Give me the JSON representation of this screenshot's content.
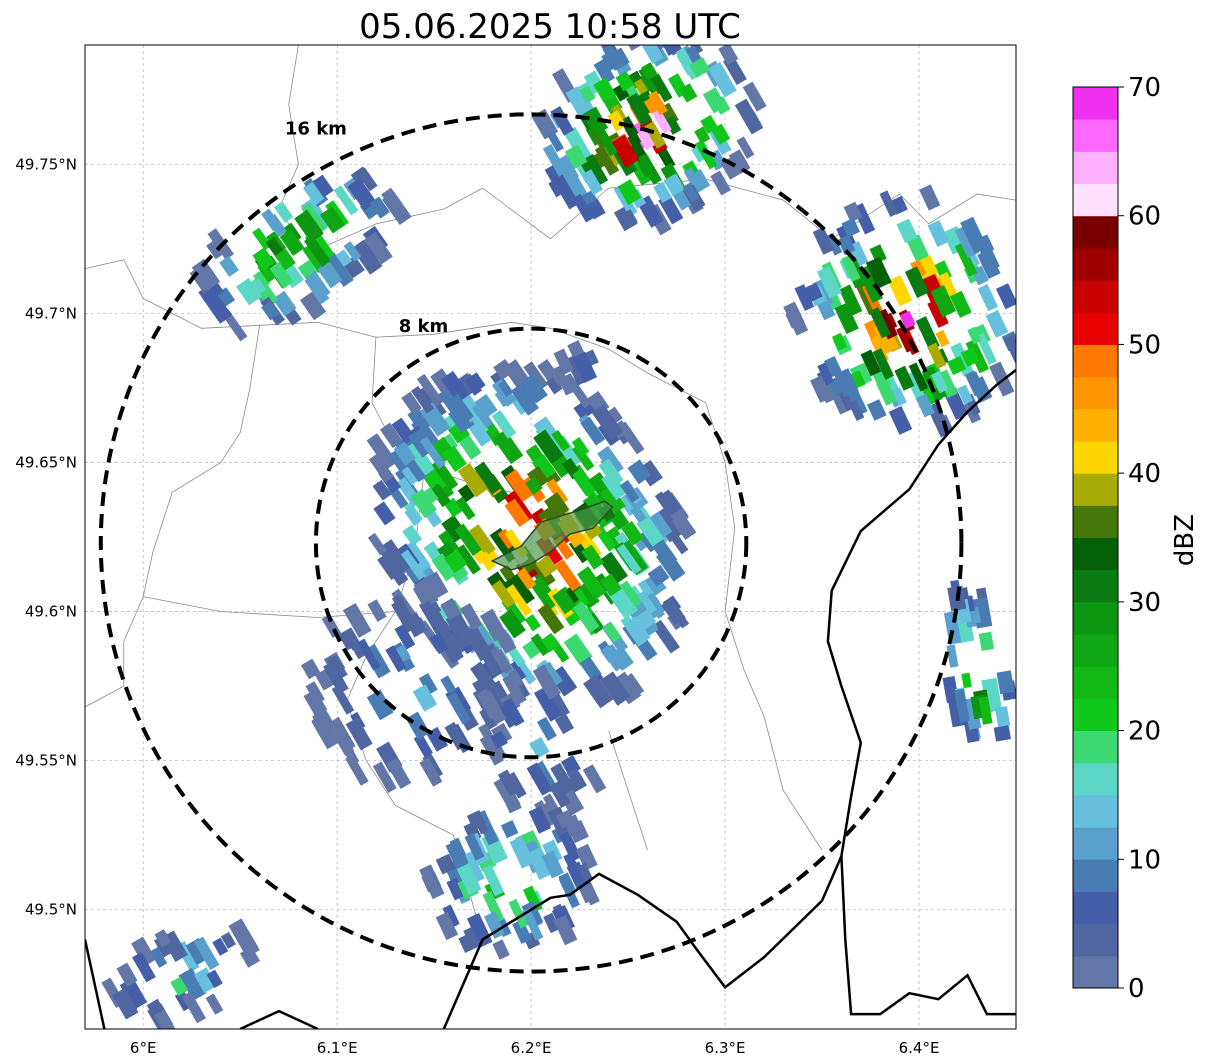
{
  "title": "05.06.2025 10:58 UTC",
  "map": {
    "lon_range": [
      5.97,
      6.45
    ],
    "lat_range": [
      49.46,
      49.79
    ],
    "x_ticks": [
      {
        "value": 6.0,
        "label": "6°E"
      },
      {
        "value": 6.1,
        "label": "6.1°E"
      },
      {
        "value": 6.2,
        "label": "6.2°E"
      },
      {
        "value": 6.3,
        "label": "6.3°E"
      },
      {
        "value": 6.4,
        "label": "6.4°E"
      }
    ],
    "y_ticks": [
      {
        "value": 49.75,
        "label": "49.75°N"
      },
      {
        "value": 49.7,
        "label": "49.7°N"
      },
      {
        "value": 49.65,
        "label": "49.65°N"
      },
      {
        "value": 49.6,
        "label": "49.6°N"
      },
      {
        "value": 49.55,
        "label": "49.55°N"
      },
      {
        "value": 49.5,
        "label": "49.5°N"
      }
    ],
    "gridlines": true,
    "center": {
      "lon": 6.2,
      "lat": 49.623
    },
    "rings": [
      {
        "radius_km": 8,
        "label": "8 km"
      },
      {
        "radius_km": 16,
        "label": "16 km"
      }
    ],
    "boundary_thick": [
      [
        [
          6.155,
          49.46
        ],
        [
          6.175,
          49.49
        ],
        [
          6.21,
          49.504
        ],
        [
          6.22,
          49.505
        ],
        [
          6.235,
          49.512
        ],
        [
          6.255,
          49.505
        ],
        [
          6.275,
          49.496
        ],
        [
          6.285,
          49.487
        ],
        [
          6.3,
          49.474
        ],
        [
          6.32,
          49.484
        ],
        [
          6.35,
          49.503
        ],
        [
          6.36,
          49.518
        ],
        [
          6.365,
          49.538
        ],
        [
          6.37,
          49.556
        ],
        [
          6.36,
          49.575
        ],
        [
          6.353,
          49.59
        ],
        [
          6.355,
          49.607
        ],
        [
          6.37,
          49.627
        ],
        [
          6.395,
          49.641
        ],
        [
          6.41,
          49.656
        ],
        [
          6.425,
          49.667
        ],
        [
          6.44,
          49.676
        ],
        [
          6.45,
          49.681
        ]
      ],
      [
        [
          5.97,
          49.49
        ],
        [
          5.98,
          49.46
        ]
      ],
      [
        [
          6.05,
          49.46
        ],
        [
          6.07,
          49.466
        ],
        [
          6.09,
          49.46
        ]
      ],
      [
        [
          6.36,
          49.518
        ],
        [
          6.362,
          49.49
        ],
        [
          6.365,
          49.465
        ],
        [
          6.38,
          49.465
        ],
        [
          6.395,
          49.472
        ],
        [
          6.41,
          49.47
        ],
        [
          6.425,
          49.478
        ],
        [
          6.435,
          49.465
        ],
        [
          6.45,
          49.465
        ]
      ]
    ],
    "boundary_thin": [
      [
        [
          6.08,
          49.79
        ],
        [
          6.075,
          49.77
        ],
        [
          6.08,
          49.75
        ],
        [
          6.07,
          49.735
        ],
        [
          6.085,
          49.72
        ],
        [
          6.12,
          49.73
        ],
        [
          6.155,
          49.735
        ],
        [
          6.175,
          49.742
        ],
        [
          6.21,
          49.725
        ],
        [
          6.24,
          49.742
        ],
        [
          6.29,
          49.745
        ],
        [
          6.33,
          49.738
        ],
        [
          6.355,
          49.725
        ],
        [
          6.39,
          49.74
        ],
        [
          6.405,
          49.73
        ],
        [
          6.43,
          49.74
        ],
        [
          6.45,
          49.738
        ]
      ],
      [
        [
          5.97,
          49.715
        ],
        [
          5.99,
          49.718
        ],
        [
          6.0,
          49.705
        ],
        [
          6.015,
          49.7
        ],
        [
          6.03,
          49.695
        ],
        [
          6.06,
          49.696
        ],
        [
          6.09,
          49.697
        ],
        [
          6.12,
          49.692
        ],
        [
          6.15,
          49.693
        ],
        [
          6.19,
          49.697
        ],
        [
          6.21,
          49.695
        ],
        [
          6.24,
          49.688
        ],
        [
          6.26,
          49.68
        ],
        [
          6.29,
          49.67
        ],
        [
          6.3,
          49.65
        ],
        [
          6.305,
          49.628
        ]
      ],
      [
        [
          6.12,
          49.692
        ],
        [
          6.118,
          49.67
        ],
        [
          6.13,
          49.655
        ],
        [
          6.145,
          49.648
        ],
        [
          6.16,
          49.645
        ],
        [
          6.175,
          49.642
        ],
        [
          6.19,
          49.64
        ]
      ],
      [
        [
          6.06,
          49.696
        ],
        [
          6.055,
          49.675
        ],
        [
          6.05,
          49.66
        ],
        [
          6.04,
          49.65
        ],
        [
          6.015,
          49.64
        ],
        [
          6.005,
          49.62
        ],
        [
          6.0,
          49.605
        ],
        [
          5.99,
          49.59
        ],
        [
          5.99,
          49.575
        ],
        [
          5.97,
          49.568
        ]
      ],
      [
        [
          6.145,
          49.648
        ],
        [
          6.14,
          49.62
        ],
        [
          6.13,
          49.6
        ],
        [
          6.115,
          49.585
        ],
        [
          6.105,
          49.57
        ],
        [
          6.115,
          49.55
        ],
        [
          6.13,
          49.535
        ],
        [
          6.16,
          49.525
        ],
        [
          6.175,
          49.49
        ]
      ],
      [
        [
          6.0,
          49.605
        ],
        [
          6.04,
          49.6
        ],
        [
          6.09,
          49.598
        ],
        [
          6.13,
          49.6
        ]
      ],
      [
        [
          6.305,
          49.628
        ],
        [
          6.3,
          49.6
        ],
        [
          6.31,
          49.58
        ],
        [
          6.32,
          49.565
        ],
        [
          6.33,
          49.54
        ],
        [
          6.35,
          49.52
        ]
      ],
      [
        [
          6.24,
          49.56
        ],
        [
          6.25,
          49.54
        ],
        [
          6.26,
          49.52
        ]
      ]
    ]
  },
  "colorbar": {
    "label": "dBZ",
    "vmin": 0,
    "vmax": 70,
    "ticks": [
      0,
      10,
      20,
      30,
      40,
      50,
      60,
      70
    ],
    "colors": [
      "#6276a8",
      "#5066a0",
      "#445ea8",
      "#4a7cb4",
      "#5aa0cc",
      "#66c0de",
      "#5cd6c6",
      "#3cd872",
      "#10c81c",
      "#12b816",
      "#0fa613",
      "#0c9612",
      "#097b10",
      "#046006",
      "#457708",
      "#a9ab06",
      "#fed600",
      "#feb000",
      "#ff9600",
      "#ff7800",
      "#e80000",
      "#c80000",
      "#a00000",
      "#780000",
      "#ffe0ff",
      "#ffb0ff",
      "#ff68ff",
      "#f030f0"
    ]
  },
  "echoes": [
    {
      "lon": 6.2,
      "lat": 49.625,
      "dlon": 0.075,
      "dlat": 0.062,
      "ang": 35,
      "peak": 0.85,
      "n": 420,
      "seed": 11
    },
    {
      "lon": 6.14,
      "lat": 49.575,
      "dlon": 0.055,
      "dlat": 0.035,
      "ang": 30,
      "peak": 0.2,
      "n": 110,
      "seed": 12
    },
    {
      "lon": 6.205,
      "lat": 49.555,
      "dlon": 0.03,
      "dlat": 0.025,
      "ang": 30,
      "peak": 0.2,
      "n": 40,
      "seed": 13
    },
    {
      "lon": 6.19,
      "lat": 49.51,
      "dlon": 0.045,
      "dlat": 0.025,
      "ang": 25,
      "peak": 0.45,
      "n": 90,
      "seed": 14
    },
    {
      "lon": 6.26,
      "lat": 49.762,
      "dlon": 0.06,
      "dlat": 0.03,
      "ang": 30,
      "peak": 0.9,
      "n": 170,
      "seed": 15
    },
    {
      "lon": 6.08,
      "lat": 49.722,
      "dlon": 0.06,
      "dlat": 0.02,
      "ang": 35,
      "peak": 0.55,
      "n": 100,
      "seed": 16
    },
    {
      "lon": 6.395,
      "lat": 49.7,
      "dlon": 0.06,
      "dlat": 0.04,
      "ang": 25,
      "peak": 0.9,
      "n": 170,
      "seed": 17
    },
    {
      "lon": 6.43,
      "lat": 49.58,
      "dlon": 0.018,
      "dlat": 0.03,
      "ang": 10,
      "peak": 0.6,
      "n": 40,
      "seed": 18
    },
    {
      "lon": 6.02,
      "lat": 49.478,
      "dlon": 0.04,
      "dlat": 0.014,
      "ang": 30,
      "peak": 0.3,
      "n": 40,
      "seed": 19
    },
    {
      "lon": 6.225,
      "lat": 49.682,
      "dlon": 0.015,
      "dlat": 0.006,
      "ang": 25,
      "peak": 0.1,
      "n": 10,
      "seed": 20
    }
  ],
  "polygon": [
    [
      6.18,
      49.617
    ],
    [
      6.195,
      49.622
    ],
    [
      6.205,
      49.63
    ],
    [
      6.215,
      49.632
    ],
    [
      6.225,
      49.634
    ],
    [
      6.238,
      49.637
    ],
    [
      6.242,
      49.635
    ],
    [
      6.232,
      49.628
    ],
    [
      6.22,
      49.626
    ],
    [
      6.21,
      49.62
    ],
    [
      6.2,
      49.616
    ],
    [
      6.19,
      49.614
    ]
  ]
}
